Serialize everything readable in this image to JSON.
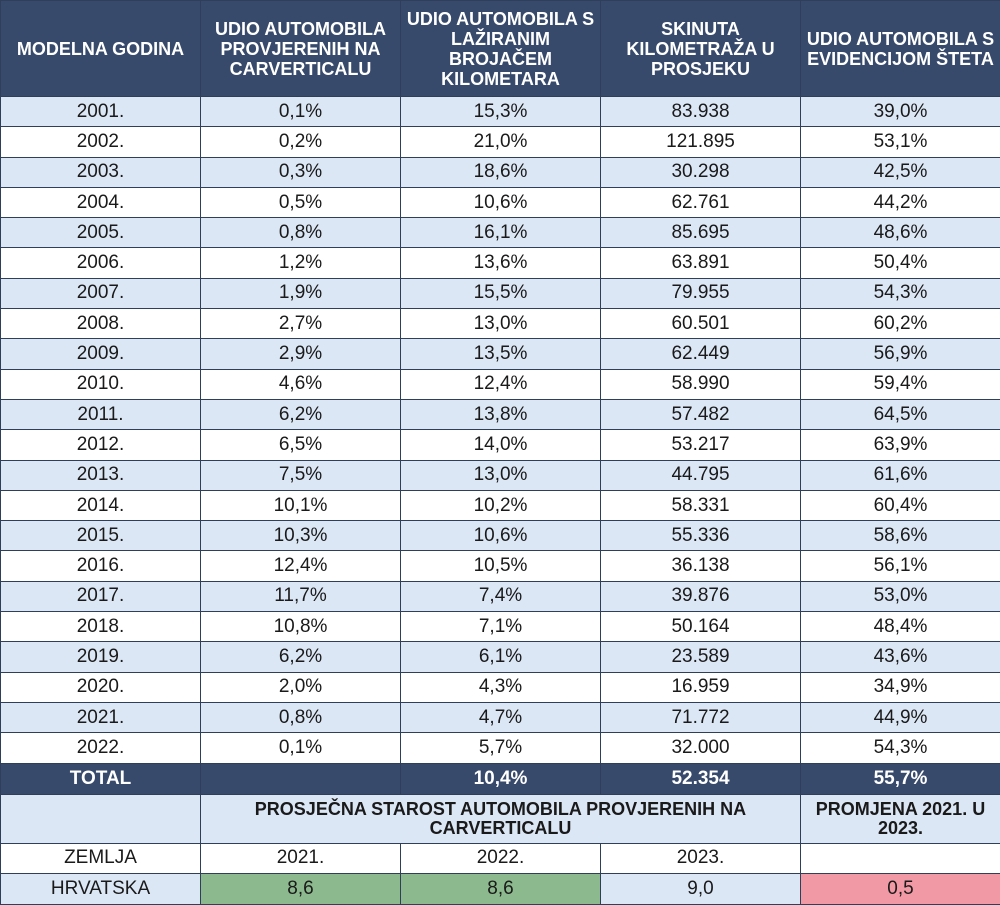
{
  "headers": [
    "MODELNA GODINA",
    "UDIO AUTOMOBILA PROVJERENIH NA CARVERTICALU",
    "UDIO AUTOMOBILA S LAŽIRANIM BROJAČEM KILOMETARA",
    "SKINUTA KILOMETRAŽA U PROSJEKU",
    "UDIO AUTOMOBILA S EVIDENCIJOM ŠTETA"
  ],
  "rows": [
    [
      "2001.",
      "0,1%",
      "15,3%",
      "83.938",
      "39,0%"
    ],
    [
      "2002.",
      "0,2%",
      "21,0%",
      "121.895",
      "53,1%"
    ],
    [
      "2003.",
      "0,3%",
      "18,6%",
      "30.298",
      "42,5%"
    ],
    [
      "2004.",
      "0,5%",
      "10,6%",
      "62.761",
      "44,2%"
    ],
    [
      "2005.",
      "0,8%",
      "16,1%",
      "85.695",
      "48,6%"
    ],
    [
      "2006.",
      "1,2%",
      "13,6%",
      "63.891",
      "50,4%"
    ],
    [
      "2007.",
      "1,9%",
      "15,5%",
      "79.955",
      "54,3%"
    ],
    [
      "2008.",
      "2,7%",
      "13,0%",
      "60.501",
      "60,2%"
    ],
    [
      "2009.",
      "2,9%",
      "13,5%",
      "62.449",
      "56,9%"
    ],
    [
      "2010.",
      "4,6%",
      "12,4%",
      "58.990",
      "59,4%"
    ],
    [
      "2011.",
      "6,2%",
      "13,8%",
      "57.482",
      "64,5%"
    ],
    [
      "2012.",
      "6,5%",
      "14,0%",
      "53.217",
      "63,9%"
    ],
    [
      "2013.",
      "7,5%",
      "13,0%",
      "44.795",
      "61,6%"
    ],
    [
      "2014.",
      "10,1%",
      "10,2%",
      "58.331",
      "60,4%"
    ],
    [
      "2015.",
      "10,3%",
      "10,6%",
      "55.336",
      "58,6%"
    ],
    [
      "2016.",
      "12,4%",
      "10,5%",
      "36.138",
      "56,1%"
    ],
    [
      "2017.",
      "11,7%",
      "7,4%",
      "39.876",
      "53,0%"
    ],
    [
      "2018.",
      "10,8%",
      "7,1%",
      "50.164",
      "48,4%"
    ],
    [
      "2019.",
      "6,2%",
      "6,1%",
      "23.589",
      "43,6%"
    ],
    [
      "2020.",
      "2,0%",
      "4,3%",
      "16.959",
      "34,9%"
    ],
    [
      "2021.",
      "0,8%",
      "4,7%",
      "71.772",
      "44,9%"
    ],
    [
      "2022.",
      "0,1%",
      "5,7%",
      "32.000",
      "54,3%"
    ]
  ],
  "total": {
    "label": "TOTAL",
    "c2": "",
    "c3": "10,4%",
    "c4": "52.354",
    "c5": "55,7%"
  },
  "age_section": {
    "title": "PROSJEČNA STAROST AUTOMOBILA PROVJERENIH NA CARVERTICALU",
    "change_title": "PROMJENA 2021. U 2023.",
    "country_header": "ZEMLJA",
    "years": [
      "2021.",
      "2022.",
      "2023."
    ],
    "country": "HRVATSKA",
    "values": [
      "8,6",
      "8,6",
      "9,0"
    ],
    "change": "0,5"
  },
  "colors": {
    "header_bg": "#374a6b",
    "row_stripe": "#dce7f6",
    "green": "#8cb98d",
    "red": "#f19aa6"
  }
}
